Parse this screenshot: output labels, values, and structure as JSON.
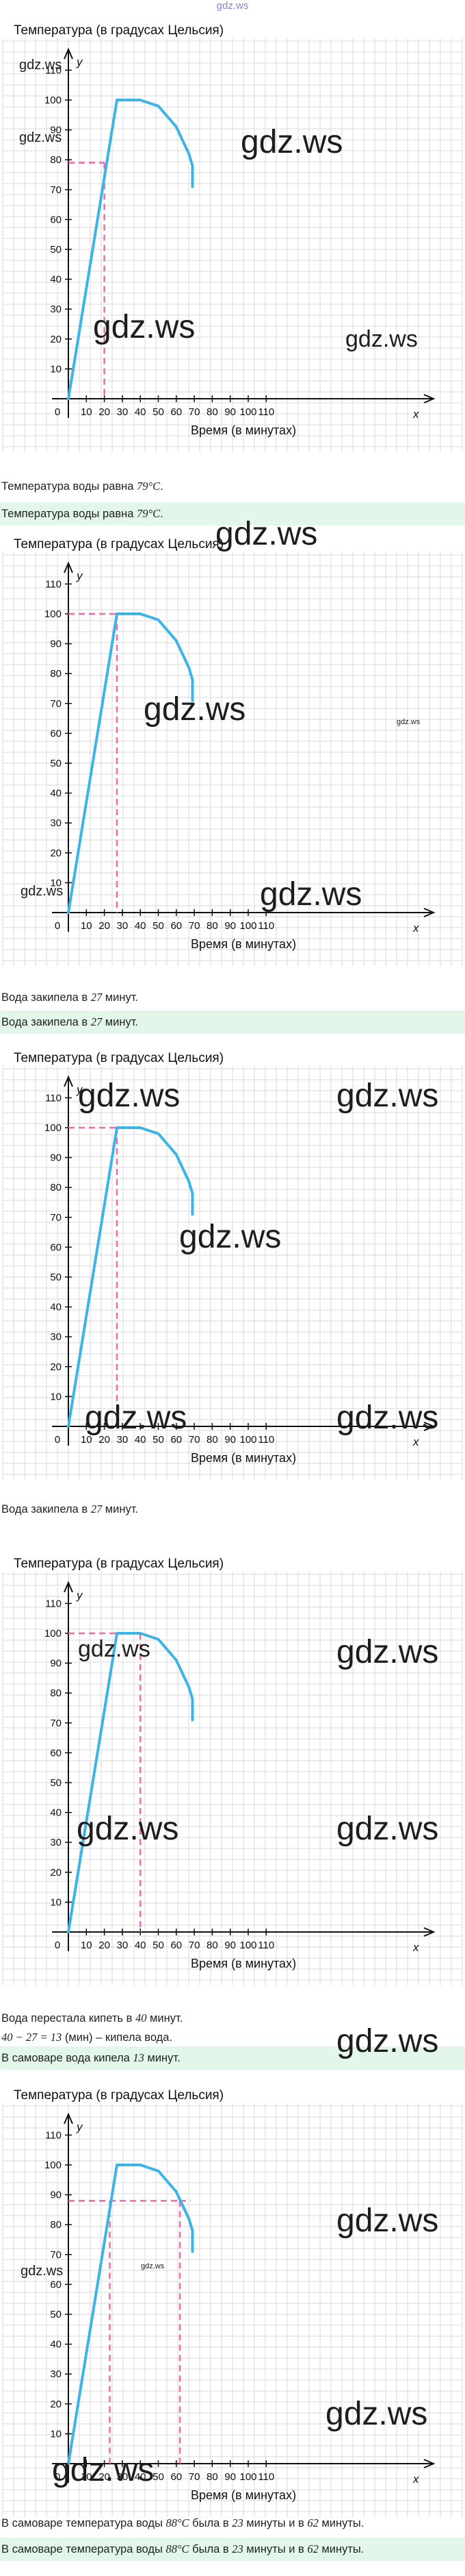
{
  "site_mark": "gdz.ws",
  "watermark": "gdz.ws",
  "graph_common": {
    "title": "Температура (в градусах Цельсия)",
    "xlabel": "Время (в минутах)",
    "x_axis_letter": "x",
    "y_axis_letter": "y",
    "origin_label": "0",
    "x_ticks": [
      "10",
      "20",
      "30",
      "40",
      "50",
      "60",
      "70",
      "80",
      "90",
      "100",
      "110"
    ],
    "y_ticks": [
      "10",
      "20",
      "30",
      "40",
      "50",
      "60",
      "70",
      "80",
      "90",
      "100",
      "110"
    ]
  },
  "texts": {
    "t1_plain": "Температура воды равна ",
    "t1_math": "79°C",
    "t1_end": ".",
    "t2_plain": "Температура воды равна ",
    "t2_math": "79°C",
    "t2_end": ".",
    "t3_plain": "Вода закипела в ",
    "t3_math": "27",
    "t3_end": " минут.",
    "t4_plain": "Вода закипела в ",
    "t4_math": "27",
    "t4_end": " минут.",
    "t5_plain": "Вода закипела в ",
    "t5_math": "27",
    "t5_end": " минут.",
    "t6_plain": "Вода перестала кипеть в ",
    "t6_math": "40",
    "t6_end": " минут.",
    "t7_math": "40 − 27 = 13",
    "t7_end": " (мин) – кипела вода.",
    "t8_plain": "В самоваре вода кипела ",
    "t8_math": "13",
    "t8_end": " минут.",
    "t9_plain": "В самоваре температура воды ",
    "t9_math1": "88°C",
    "t9_mid": " была в ",
    "t9_math2": "23",
    "t9_mid2": " минуты и в ",
    "t9_math3": "62",
    "t9_end": " минуты.",
    "t10_plain": "В самоваре температура воды ",
    "t10_math1": "88°C",
    "t10_mid": " была в ",
    "t10_math2": "23",
    "t10_mid2": " минуты и в ",
    "t10_math3": "62",
    "t10_end": " минуты."
  },
  "colors": {
    "curve": "#3db4e6",
    "guide": "#f06aa7",
    "grid": "#d9d9d9",
    "highlight": "#e3f6ea"
  },
  "chart_data": [
    {
      "type": "line",
      "title": "Температура (в градусах Цельсия)",
      "xlabel": "Время (в минутах)",
      "ylabel": "",
      "xlim": [
        0,
        110
      ],
      "ylim": [
        0,
        110
      ],
      "series": [
        {
          "x": [
            0,
            27,
            40,
            50,
            60,
            67,
            69,
            69
          ],
          "y": [
            0,
            100,
            100,
            98,
            91,
            82,
            78,
            71
          ]
        }
      ],
      "guides": [
        {
          "x": 20,
          "y": 79
        }
      ]
    },
    {
      "type": "line",
      "title": "Температура (в градусах Цельсия)",
      "xlabel": "Время (в минутах)",
      "ylabel": "",
      "xlim": [
        0,
        110
      ],
      "ylim": [
        0,
        110
      ],
      "series": [
        {
          "x": [
            0,
            27,
            40,
            50,
            60,
            67,
            69,
            69
          ],
          "y": [
            0,
            100,
            100,
            98,
            91,
            82,
            78,
            71
          ]
        }
      ],
      "guides": [
        {
          "x": 27,
          "y": 100
        }
      ]
    },
    {
      "type": "line",
      "title": "Температура (в градусах Цельсия)",
      "xlabel": "Время (в минутах)",
      "ylabel": "",
      "xlim": [
        0,
        110
      ],
      "ylim": [
        0,
        110
      ],
      "series": [
        {
          "x": [
            0,
            27,
            40,
            50,
            60,
            67,
            69,
            69
          ],
          "y": [
            0,
            100,
            100,
            98,
            91,
            82,
            78,
            71
          ]
        }
      ],
      "guides": [
        {
          "x": 27,
          "y": 100
        }
      ]
    },
    {
      "type": "line",
      "title": "Температура (в градусах Цельсия)",
      "xlabel": "Время (в минутах)",
      "ylabel": "",
      "xlim": [
        0,
        110
      ],
      "ylim": [
        0,
        110
      ],
      "series": [
        {
          "x": [
            0,
            27,
            40,
            50,
            60,
            67,
            69,
            69
          ],
          "y": [
            0,
            100,
            100,
            98,
            91,
            82,
            78,
            71
          ]
        }
      ],
      "guides": [
        {
          "x": 40,
          "y": 100
        }
      ]
    },
    {
      "type": "line",
      "title": "Температура (в градусах Цельсия)",
      "xlabel": "Время (в минутах)",
      "ylabel": "",
      "xlim": [
        0,
        110
      ],
      "ylim": [
        0,
        110
      ],
      "series": [
        {
          "x": [
            0,
            27,
            40,
            50,
            60,
            67,
            69,
            69
          ],
          "y": [
            0,
            100,
            100,
            98,
            91,
            82,
            78,
            71
          ]
        }
      ],
      "guides": [
        {
          "x": 23,
          "y": 88
        },
        {
          "x": 62,
          "y": 88
        }
      ]
    }
  ]
}
